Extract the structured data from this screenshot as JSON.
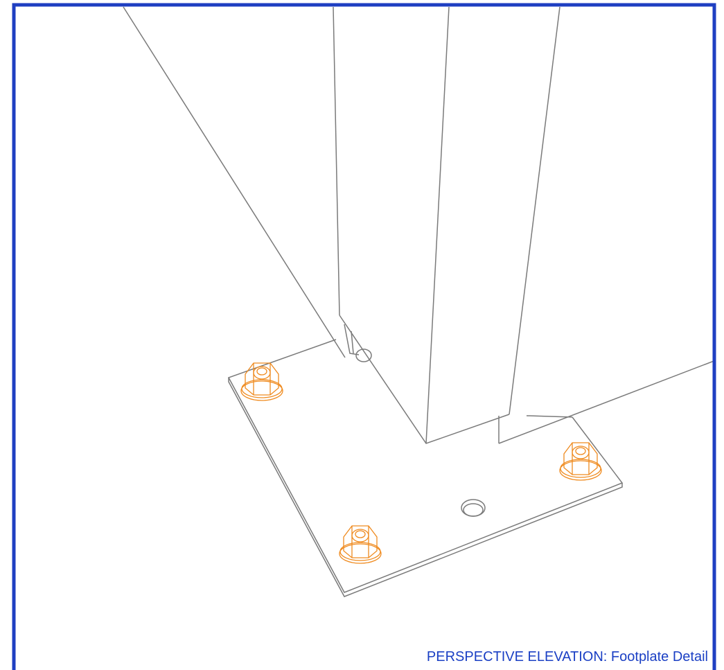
{
  "caption": "PERSPECTIVE ELEVATION: Footplate Detail"
}
